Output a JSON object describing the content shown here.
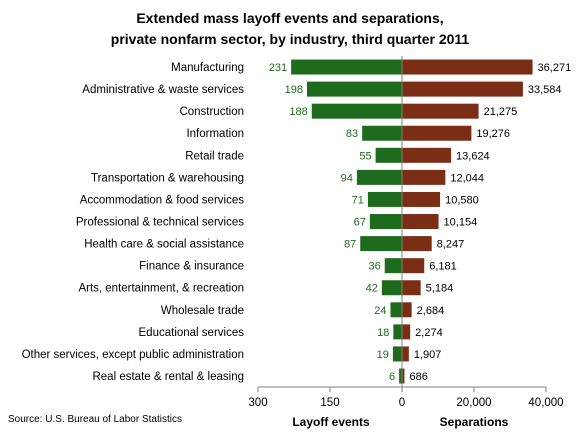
{
  "chart_data": {
    "type": "bar",
    "title": [
      "Extended mass layoff events and separations,",
      "private nonfarm sector, by industry, third quarter 2011"
    ],
    "categories": [
      "Manufacturing",
      "Administrative & waste services",
      "Construction",
      "Information",
      "Retail trade",
      "Transportation & warehousing",
      "Accommodation & food services",
      "Professional & technical services",
      "Health care & social assistance",
      "Finance & insurance",
      "Arts, entertainment, & recreation",
      "Wholesale trade",
      "Educational services",
      "Other services, except public administration",
      "Real estate & rental & leasing"
    ],
    "series": [
      {
        "name": "Layoff events",
        "color": "#1e6b1e",
        "values": [
          231,
          198,
          188,
          83,
          55,
          94,
          71,
          67,
          87,
          36,
          42,
          24,
          18,
          19,
          6
        ],
        "labels": [
          "231",
          "198",
          "188",
          "83",
          "55",
          "94",
          "71",
          "67",
          "87",
          "36",
          "42",
          "24",
          "18",
          "19",
          "6"
        ],
        "xlim": [
          0,
          300
        ],
        "ticks": [
          300,
          150,
          0
        ],
        "tick_labels": [
          "300",
          "150",
          "0"
        ]
      },
      {
        "name": "Separations",
        "color": "#7a2e16",
        "values": [
          36271,
          33584,
          21275,
          19276,
          13624,
          12044,
          10580,
          10154,
          8247,
          6181,
          5184,
          2684,
          2274,
          1907,
          686
        ],
        "labels": [
          "36,271",
          "33,584",
          "21,275",
          "19,276",
          "13,624",
          "12,044",
          "10,580",
          "10,154",
          "8,247",
          "6,181",
          "5,184",
          "2,684",
          "2,274",
          "1,907",
          "686"
        ],
        "xlim": [
          0,
          40000
        ],
        "ticks": [
          20000,
          40000
        ],
        "tick_labels": [
          "20,000",
          "40,000"
        ]
      }
    ],
    "source": "Source: U.S. Bureau of Labor Statistics"
  }
}
